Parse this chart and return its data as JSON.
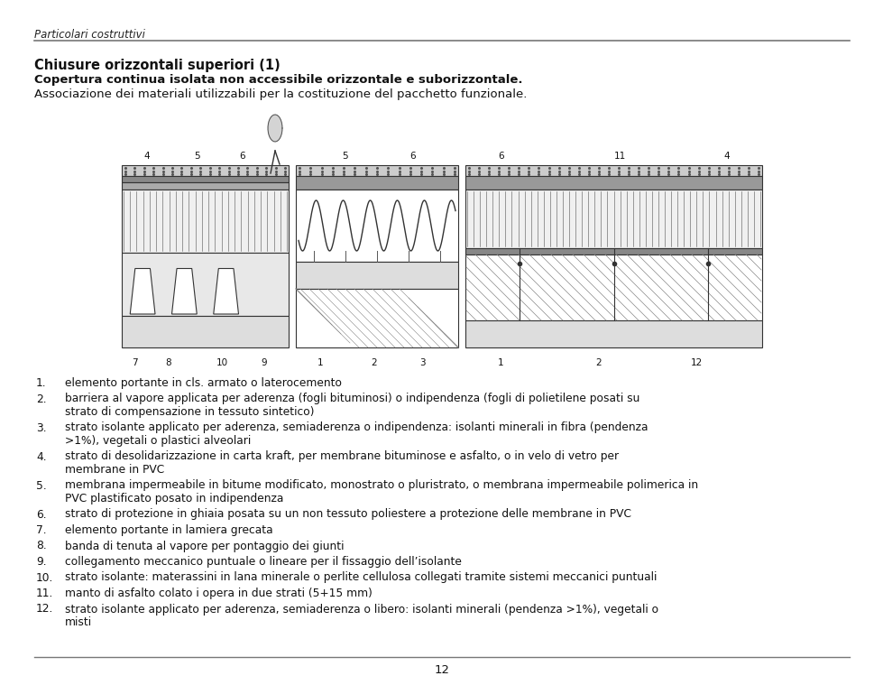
{
  "page_background": "#ffffff",
  "header_text": "Particolari costruttivi",
  "title_line1": "Chiusure orizzontali superiori (1)",
  "title_line2_bold": "Copertura continua isolata non accessibile orizzontale e suborizzontale.",
  "title_line2_normal": " Associazione dei materiali utilizzabili per la costituzione del pacchetto funzionale.",
  "numbered_items": [
    {
      "num": "1.",
      "text": "elemento portante in cls. armato o laterocemento"
    },
    {
      "num": "2.",
      "text": "barriera al vapore applicata per aderenza (fogli bituminosi) o indipendenza (fogli di polietilene posati su strato di compensazione in tessuto sintetico)"
    },
    {
      "num": "3.",
      "text": "strato isolante applicato per aderenza, semiaderenza o indipendenza: isolanti minerali in fibra (pendenza >1%), vegetali o plastici alveolari"
    },
    {
      "num": "4.",
      "text": "strato di desolidarizzazione in carta kraft, per membrane bituminose e asfalto, o in velo di vetro per membrane in PVC"
    },
    {
      "num": "5.",
      "text": "membrana impermeabile in bitume modificato, monostrato o pluristrato, o membrana impermeabile polimerica in PVC plastificato posato in indipendenza"
    },
    {
      "num": "6.",
      "text": "strato di protezione in ghiaia posata su un non tessuto poliestere a protezione delle membrane in PVC"
    },
    {
      "num": "7.",
      "text": "elemento portante in lamiera grecata"
    },
    {
      "num": "8.",
      "text": "banda di tenuta al vapore per pontaggio dei giunti"
    },
    {
      "num": "9.",
      "text": "collegamento meccanico puntuale o lineare per il fissaggio dell’isolante"
    },
    {
      "num": "10.",
      "text": "strato isolante: materassini in lana minerale o perlite cellulosa collegati tramite sistemi meccanici puntuali"
    },
    {
      "num": "11.",
      "text": "manto di asfalto colato i opera in due strati (5+15 mm)"
    },
    {
      "num": "12.",
      "text": "strato isolante applicato per aderenza, semiaderenza o libero: isolanti minerali (pendenza >1%), vegetali o misti"
    }
  ],
  "footer_text": "12"
}
